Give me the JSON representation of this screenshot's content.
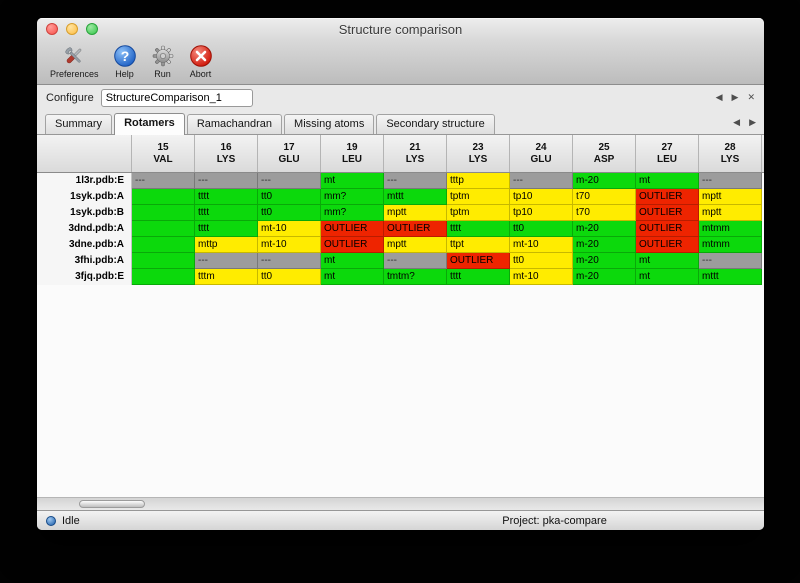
{
  "window": {
    "title": "Structure comparison"
  },
  "toolbar": {
    "items": [
      {
        "label": "Preferences"
      },
      {
        "label": "Help"
      },
      {
        "label": "Run"
      },
      {
        "label": "Abort"
      }
    ]
  },
  "configure": {
    "label": "Configure",
    "value": "StructureComparison_1",
    "nav_prev": "◀",
    "nav_next": "▶",
    "close": "✕"
  },
  "tabs": {
    "items": [
      {
        "label": "Summary",
        "active": false
      },
      {
        "label": "Rotamers",
        "active": true
      },
      {
        "label": "Ramachandran",
        "active": false
      },
      {
        "label": "Missing atoms",
        "active": false
      },
      {
        "label": "Secondary structure",
        "active": false
      }
    ],
    "nav_prev": "◀",
    "nav_next": "▶"
  },
  "table": {
    "cell_colors": {
      "green": "#0cd90c",
      "yellow": "#ffec00",
      "red": "#ee2400",
      "gray": "#9c9c9c"
    },
    "columns": [
      {
        "num": "15",
        "res": "VAL"
      },
      {
        "num": "16",
        "res": "LYS"
      },
      {
        "num": "17",
        "res": "GLU"
      },
      {
        "num": "19",
        "res": "LEU"
      },
      {
        "num": "21",
        "res": "LYS"
      },
      {
        "num": "23",
        "res": "LYS"
      },
      {
        "num": "24",
        "res": "GLU"
      },
      {
        "num": "25",
        "res": "ASP"
      },
      {
        "num": "27",
        "res": "LEU"
      },
      {
        "num": "28",
        "res": "LYS"
      }
    ],
    "rows": [
      {
        "label": "1l3r.pdb:E",
        "cells": [
          {
            "text": "---",
            "color": "gray"
          },
          {
            "text": "---",
            "color": "gray"
          },
          {
            "text": "---",
            "color": "gray"
          },
          {
            "text": "mt",
            "color": "green"
          },
          {
            "text": "---",
            "color": "gray"
          },
          {
            "text": "tttp",
            "color": "yellow"
          },
          {
            "text": "---",
            "color": "gray"
          },
          {
            "text": "m-20",
            "color": "green"
          },
          {
            "text": "mt",
            "color": "green"
          },
          {
            "text": "---",
            "color": "gray"
          }
        ]
      },
      {
        "label": "1syk.pdb:A",
        "cells": [
          {
            "text": "",
            "color": "green"
          },
          {
            "text": "tttt",
            "color": "green"
          },
          {
            "text": "tt0",
            "color": "green"
          },
          {
            "text": "mm?",
            "color": "green"
          },
          {
            "text": "mttt",
            "color": "green"
          },
          {
            "text": "tptm",
            "color": "yellow"
          },
          {
            "text": "tp10",
            "color": "yellow"
          },
          {
            "text": "t70",
            "color": "yellow"
          },
          {
            "text": "OUTLIER",
            "color": "red"
          },
          {
            "text": "mptt",
            "color": "yellow"
          }
        ]
      },
      {
        "label": "1syk.pdb:B",
        "cells": [
          {
            "text": "",
            "color": "green"
          },
          {
            "text": "tttt",
            "color": "green"
          },
          {
            "text": "tt0",
            "color": "green"
          },
          {
            "text": "mm?",
            "color": "green"
          },
          {
            "text": "mptt",
            "color": "yellow"
          },
          {
            "text": "tptm",
            "color": "yellow"
          },
          {
            "text": "tp10",
            "color": "yellow"
          },
          {
            "text": "t70",
            "color": "yellow"
          },
          {
            "text": "OUTLIER",
            "color": "red"
          },
          {
            "text": "mptt",
            "color": "yellow"
          }
        ]
      },
      {
        "label": "3dnd.pdb:A",
        "cells": [
          {
            "text": "",
            "color": "green"
          },
          {
            "text": "tttt",
            "color": "green"
          },
          {
            "text": "mt-10",
            "color": "yellow"
          },
          {
            "text": "OUTLIER",
            "color": "red"
          },
          {
            "text": "OUTLIER",
            "color": "red"
          },
          {
            "text": "tttt",
            "color": "green"
          },
          {
            "text": "tt0",
            "color": "green"
          },
          {
            "text": "m-20",
            "color": "green"
          },
          {
            "text": "OUTLIER",
            "color": "red"
          },
          {
            "text": "mtmm",
            "color": "green"
          }
        ]
      },
      {
        "label": "3dne.pdb:A",
        "cells": [
          {
            "text": "",
            "color": "green"
          },
          {
            "text": "mttp",
            "color": "yellow"
          },
          {
            "text": "mt-10",
            "color": "yellow"
          },
          {
            "text": "OUTLIER",
            "color": "red"
          },
          {
            "text": "mptt",
            "color": "yellow"
          },
          {
            "text": "ttpt",
            "color": "yellow"
          },
          {
            "text": "mt-10",
            "color": "yellow"
          },
          {
            "text": "m-20",
            "color": "green"
          },
          {
            "text": "OUTLIER",
            "color": "red"
          },
          {
            "text": "mtmm",
            "color": "green"
          }
        ]
      },
      {
        "label": "3fhi.pdb:A",
        "cells": [
          {
            "text": "",
            "color": "green"
          },
          {
            "text": "---",
            "color": "gray"
          },
          {
            "text": "---",
            "color": "gray"
          },
          {
            "text": "mt",
            "color": "green"
          },
          {
            "text": "---",
            "color": "gray"
          },
          {
            "text": "OUTLIER",
            "color": "red"
          },
          {
            "text": "tt0",
            "color": "yellow"
          },
          {
            "text": "m-20",
            "color": "green"
          },
          {
            "text": "mt",
            "color": "green"
          },
          {
            "text": "---",
            "color": "gray"
          }
        ]
      },
      {
        "label": "3fjq.pdb:E",
        "cells": [
          {
            "text": "",
            "color": "green"
          },
          {
            "text": "tttm",
            "color": "yellow"
          },
          {
            "text": "tt0",
            "color": "yellow"
          },
          {
            "text": "mt",
            "color": "green"
          },
          {
            "text": "tmtm?",
            "color": "green"
          },
          {
            "text": "tttt",
            "color": "green"
          },
          {
            "text": "mt-10",
            "color": "yellow"
          },
          {
            "text": "m-20",
            "color": "green"
          },
          {
            "text": "mt",
            "color": "green"
          },
          {
            "text": "mttt",
            "color": "green"
          }
        ]
      }
    ]
  },
  "statusbar": {
    "status": "Idle",
    "project": "Project: pka-compare"
  }
}
